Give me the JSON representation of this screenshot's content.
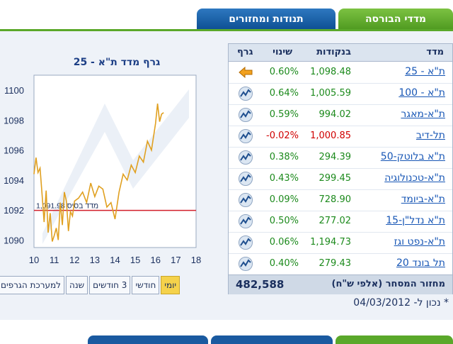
{
  "tabs": [
    {
      "label": "מדדי הבורסה",
      "active": true
    },
    {
      "label": "תנודות ומחזורים",
      "active": false
    }
  ],
  "chart": {
    "title": "גרף מדד ת\"א - 25",
    "baseline_label": "1,091.98 מדד בסיס",
    "y_ticks": [
      "1100",
      "1098",
      "1096",
      "1094",
      "1092",
      "1090"
    ],
    "x_ticks": [
      "10",
      "11",
      "12",
      "13",
      "14",
      "15",
      "16",
      "17",
      "18"
    ],
    "line_color": "#e0a020",
    "baseline_color": "#d21f2a"
  },
  "chart_data": {
    "type": "line",
    "title": "גרף מדד ת\"א - 25",
    "xlabel": "",
    "ylabel": "",
    "xlim": [
      10,
      18
    ],
    "ylim": [
      1089.5,
      1101
    ],
    "baseline": 1091.98,
    "series": [
      {
        "x": [
          10.0,
          10.1,
          10.2,
          10.3,
          10.4,
          10.5,
          10.6,
          10.7,
          10.8,
          10.9,
          11.0,
          11.1,
          11.2,
          11.3,
          11.4,
          11.5,
          11.6,
          11.7,
          11.8,
          11.9,
          12.0,
          12.2,
          12.4,
          12.6,
          12.8,
          13.0,
          13.2,
          13.4,
          13.6,
          13.8,
          14.0,
          14.2,
          14.4,
          14.6,
          14.8,
          15.0,
          15.2,
          15.4,
          15.6,
          15.8,
          16.0,
          16.1,
          16.2,
          16.3,
          16.4
        ],
        "values": [
          1094.4,
          1095.5,
          1094.5,
          1094.8,
          1093.0,
          1091.2,
          1093.3,
          1090.5,
          1091.8,
          1089.9,
          1090.3,
          1090.8,
          1090.0,
          1092.5,
          1091.0,
          1093.2,
          1092.6,
          1090.6,
          1091.9,
          1091.6,
          1092.6,
          1092.8,
          1093.2,
          1092.5,
          1093.8,
          1092.9,
          1093.6,
          1093.4,
          1092.2,
          1092.5,
          1091.4,
          1093.2,
          1094.4,
          1094.0,
          1095.0,
          1094.5,
          1095.6,
          1095.2,
          1096.6,
          1096.0,
          1097.8,
          1099.1,
          1097.9,
          1098.4,
          1098.5
        ]
      }
    ]
  },
  "period_tabs": [
    {
      "label": "יומי",
      "selected": true
    },
    {
      "label": "חודשי",
      "selected": false
    },
    {
      "label": "3 חודשים",
      "selected": false
    },
    {
      "label": "שנה",
      "selected": false
    },
    {
      "label": "למערכת הגרפים",
      "selected": false
    }
  ],
  "table": {
    "headers": {
      "name": "מדד",
      "points": "בנקודות",
      "change": "שינוי",
      "graph": "גרף"
    },
    "rows": [
      {
        "name": "ת\"א - 25",
        "points": "1,098.48",
        "change": "0.60%",
        "positive": true,
        "icon": "arrow-left-icon"
      },
      {
        "name": "ת\"א - 100",
        "points": "1,005.59",
        "change": "0.64%",
        "positive": true,
        "icon": "chart-icon"
      },
      {
        "name": "ת\"א-מאגר",
        "points": "994.02",
        "change": "0.59%",
        "positive": true,
        "icon": "chart-icon"
      },
      {
        "name": "תל-דיב",
        "points": "1,000.85",
        "change": "-0.02%",
        "positive": false,
        "icon": "chart-icon"
      },
      {
        "name": "ת\"א בלוטק-50",
        "points": "294.39",
        "change": "0.38%",
        "positive": true,
        "icon": "chart-icon"
      },
      {
        "name": "ת\"א-טכנולוגיה",
        "points": "299.45",
        "change": "0.43%",
        "positive": true,
        "icon": "chart-icon"
      },
      {
        "name": "ת\"א-ביומד",
        "points": "728.90",
        "change": "0.09%",
        "positive": true,
        "icon": "chart-icon"
      },
      {
        "name": "ת\"א נדל\"ן-15",
        "points": "277.02",
        "change": "0.50%",
        "positive": true,
        "icon": "chart-icon"
      },
      {
        "name": "ת\"א-נפט וגז",
        "points": "1,194.73",
        "change": "0.06%",
        "positive": true,
        "icon": "chart-icon"
      },
      {
        "name": "תל בונד 20",
        "points": "279.43",
        "change": "0.40%",
        "positive": true,
        "icon": "chart-icon"
      }
    ],
    "turnover_label": "מחזור המסחר (אלפי ש\"ח)",
    "turnover_value": "482,588"
  },
  "updated": "* נכון ל- 04/03/2012",
  "colors": {
    "positive": "#1c8a1c",
    "negative": "#d00000",
    "link": "#1756b5"
  }
}
